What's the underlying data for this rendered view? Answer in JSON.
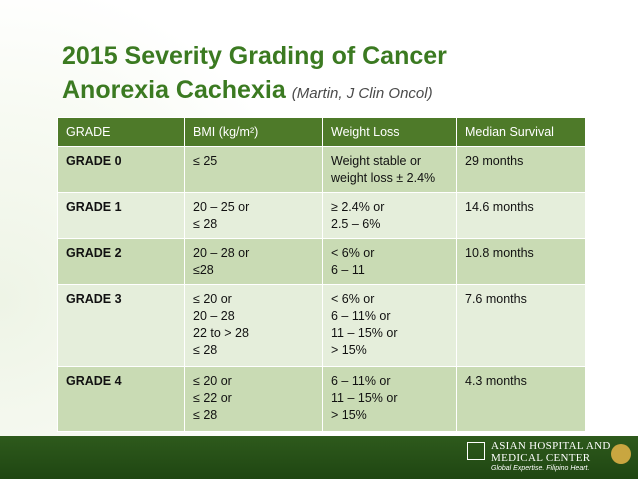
{
  "title": {
    "line1": "2015 Severity Grading of Cancer",
    "line2": "Anorexia Cachexia",
    "source": "(Martin, J Clin Oncol)"
  },
  "table": {
    "header": [
      "GRADE",
      "BMI (kg/m²)",
      "Weight Loss",
      "Median Survival"
    ],
    "rows": [
      [
        [
          "GRADE 0"
        ],
        [
          "≤ 25"
        ],
        [
          "Weight stable or",
          "weight loss ± 2.4%"
        ],
        [
          "29 months"
        ]
      ],
      [
        [
          "GRADE 1"
        ],
        [
          "20 – 25 or",
          "≤ 28"
        ],
        [
          "≥ 2.4% or",
          "2.5 – 6%"
        ],
        [
          "14.6 months"
        ]
      ],
      [
        [
          "GRADE 2"
        ],
        [
          "20 – 28 or",
          "≤28"
        ],
        [
          "< 6% or",
          "6 – 11"
        ],
        [
          "10.8 months"
        ]
      ],
      [
        [
          "GRADE 3"
        ],
        [
          "≤ 20 or",
          "20 – 28",
          "22 to > 28",
          "≤ 28"
        ],
        [
          "< 6% or",
          "6 – 11% or",
          "11 – 15% or",
          "> 15%"
        ],
        [
          "7.6 months"
        ]
      ],
      [
        [
          "GRADE 4"
        ],
        [
          "≤ 20 or",
          "≤ 22 or",
          "≤ 28"
        ],
        [
          "6 – 11% or",
          "11 – 15% or",
          "> 15%"
        ],
        [
          "4.3 months"
        ]
      ]
    ]
  },
  "logo": {
    "line1": "ASIAN HOSPITAL AND",
    "line2": "MEDICAL CENTER",
    "tagline": "Global Expertise. Filipino Heart."
  }
}
